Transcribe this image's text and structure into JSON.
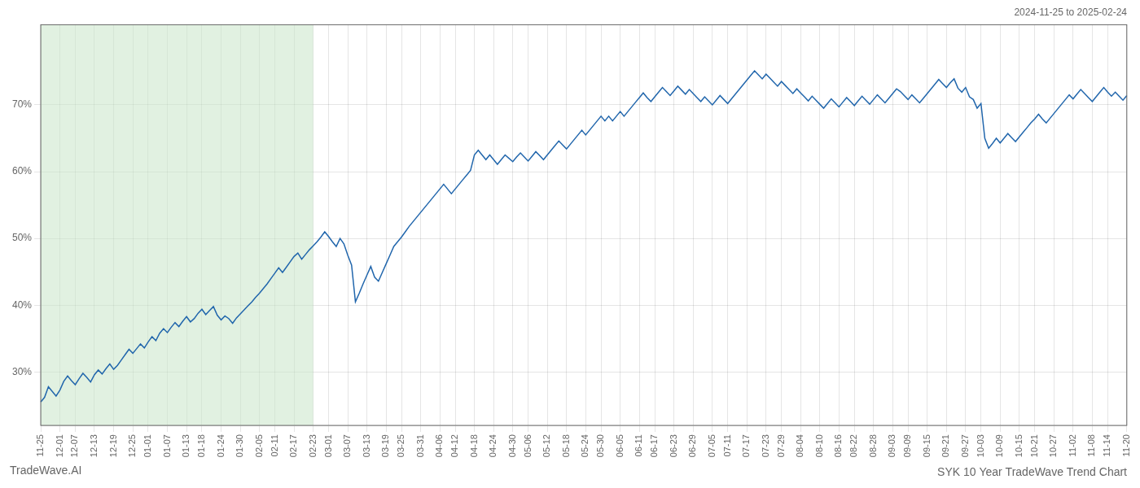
{
  "chart_data": {
    "type": "line",
    "title": "SYK 10 Year TradeWave Trend Chart",
    "subtitle": "2024-11-25 to 2025-02-24",
    "annotations": [
      "TradeWave.AI"
    ],
    "color": "#2166ac",
    "grid": true,
    "ylim": [
      22,
      82
    ],
    "yticks": [
      {
        "value": 30,
        "label": "30%"
      },
      {
        "value": 40,
        "label": "40%"
      },
      {
        "value": 50,
        "label": "50%"
      },
      {
        "value": 60,
        "label": "60%"
      },
      {
        "value": 70,
        "label": "70%"
      }
    ],
    "shaded_range": {
      "from": "11-25",
      "to": "02-23",
      "color": "#c8e6c9"
    },
    "categories": [
      "11-25",
      null,
      null,
      null,
      null,
      "12-01",
      null,
      null,
      null,
      "12-07",
      null,
      null,
      null,
      null,
      "12-13",
      null,
      null,
      null,
      null,
      "12-19",
      null,
      null,
      null,
      null,
      "12-25",
      null,
      null,
      null,
      "01-01",
      null,
      null,
      null,
      null,
      "01-07",
      null,
      null,
      null,
      null,
      "01-13",
      null,
      null,
      null,
      "01-18",
      null,
      null,
      null,
      null,
      "01-24",
      null,
      null,
      null,
      null,
      "01-30",
      null,
      null,
      null,
      null,
      "02-05",
      null,
      null,
      null,
      "02-11",
      null,
      null,
      null,
      null,
      "02-17",
      null,
      null,
      null,
      null,
      "02-23",
      null,
      null,
      null,
      "03-01",
      null,
      null,
      null,
      null,
      "03-07",
      null,
      null,
      null,
      null,
      "03-13",
      null,
      null,
      null,
      null,
      "03-19",
      null,
      null,
      null,
      "03-25",
      null,
      null,
      null,
      null,
      "03-31",
      null,
      null,
      null,
      null,
      "04-06",
      null,
      null,
      null,
      "04-12",
      null,
      null,
      null,
      null,
      "04-18",
      null,
      null,
      null,
      null,
      "04-24",
      null,
      null,
      null,
      null,
      "04-30",
      null,
      null,
      null,
      "05-06",
      null,
      null,
      null,
      null,
      "05-12",
      null,
      null,
      null,
      null,
      "05-18",
      null,
      null,
      null,
      null,
      "05-24",
      null,
      null,
      null,
      "05-30",
      null,
      null,
      null,
      null,
      "06-05",
      null,
      null,
      null,
      null,
      "06-11",
      null,
      null,
      null,
      "06-17",
      null,
      null,
      null,
      null,
      "06-23",
      null,
      null,
      null,
      null,
      "06-29",
      null,
      null,
      null,
      null,
      "07-05",
      null,
      null,
      null,
      "07-11",
      null,
      null,
      null,
      null,
      "07-17",
      null,
      null,
      null,
      null,
      "07-23",
      null,
      null,
      null,
      "07-29",
      null,
      null,
      null,
      null,
      "08-04",
      null,
      null,
      null,
      null,
      "08-10",
      null,
      null,
      null,
      null,
      "08-16",
      null,
      null,
      null,
      "08-22",
      null,
      null,
      null,
      null,
      "08-28",
      null,
      null,
      null,
      null,
      "09-03",
      null,
      null,
      null,
      "09-09",
      null,
      null,
      null,
      null,
      "09-15",
      null,
      null,
      null,
      null,
      "09-21",
      null,
      null,
      null,
      null,
      "09-27",
      null,
      null,
      null,
      "10-03",
      null,
      null,
      null,
      null,
      "10-09",
      null,
      null,
      null,
      null,
      "10-15",
      null,
      null,
      null,
      "10-21",
      null,
      null,
      null,
      null,
      "10-27",
      null,
      null,
      null,
      null,
      "11-02",
      null,
      null,
      null,
      null,
      "11-08",
      null,
      null,
      null,
      "11-14",
      null,
      null,
      null,
      null,
      "11-20"
    ],
    "values": [
      25.5,
      26.2,
      27.8,
      27.1,
      26.4,
      27.3,
      28.6,
      29.4,
      28.7,
      28.1,
      29.0,
      29.8,
      29.2,
      28.5,
      29.6,
      30.3,
      29.7,
      30.5,
      31.2,
      30.4,
      31.0,
      31.8,
      32.6,
      33.4,
      32.8,
      33.5,
      34.2,
      33.6,
      34.5,
      35.3,
      34.7,
      35.8,
      36.5,
      35.9,
      36.7,
      37.4,
      36.8,
      37.6,
      38.3,
      37.5,
      38.0,
      38.8,
      39.4,
      38.6,
      39.2,
      39.8,
      38.5,
      37.8,
      38.4,
      38.0,
      37.3,
      38.1,
      38.7,
      39.3,
      39.9,
      40.5,
      41.2,
      41.8,
      42.5,
      43.2,
      44.0,
      44.8,
      45.6,
      44.9,
      45.7,
      46.5,
      47.3,
      47.8,
      46.9,
      47.6,
      48.3,
      48.9,
      49.5,
      50.2,
      51.0,
      50.3,
      49.5,
      48.8,
      50.0,
      49.2,
      47.5,
      46.0,
      40.5,
      41.8,
      43.2,
      44.5,
      45.8,
      44.2,
      43.6,
      44.9,
      46.2,
      47.5,
      48.8,
      49.5,
      50.2,
      51.0,
      51.8,
      52.5,
      53.2,
      53.9,
      54.6,
      55.3,
      56.0,
      56.7,
      57.4,
      58.1,
      57.4,
      56.7,
      57.4,
      58.1,
      58.8,
      59.5,
      60.2,
      62.5,
      63.2,
      62.5,
      61.8,
      62.5,
      61.8,
      61.1,
      61.8,
      62.5,
      62.0,
      61.5,
      62.2,
      62.8,
      62.2,
      61.6,
      62.3,
      63.0,
      62.4,
      61.8,
      62.5,
      63.2,
      63.9,
      64.6,
      64.0,
      63.4,
      64.1,
      64.8,
      65.5,
      66.2,
      65.5,
      66.2,
      66.9,
      67.6,
      68.3,
      67.6,
      68.3,
      67.6,
      68.3,
      69.0,
      68.3,
      69.0,
      69.7,
      70.4,
      71.1,
      71.8,
      71.1,
      70.5,
      71.2,
      71.9,
      72.6,
      72.0,
      71.4,
      72.1,
      72.8,
      72.2,
      71.6,
      72.3,
      71.7,
      71.1,
      70.5,
      71.2,
      70.6,
      70.0,
      70.7,
      71.4,
      70.8,
      70.2,
      70.9,
      71.6,
      72.3,
      73.0,
      73.7,
      74.4,
      75.1,
      74.5,
      73.9,
      74.6,
      74.0,
      73.4,
      72.8,
      73.5,
      72.9,
      72.3,
      71.7,
      72.4,
      71.8,
      71.2,
      70.6,
      71.3,
      70.7,
      70.1,
      69.5,
      70.2,
      70.9,
      70.3,
      69.7,
      70.4,
      71.1,
      70.5,
      69.9,
      70.6,
      71.3,
      70.7,
      70.1,
      70.8,
      71.5,
      70.9,
      70.3,
      71.0,
      71.7,
      72.4,
      72.0,
      71.4,
      70.8,
      71.5,
      70.9,
      70.3,
      71.0,
      71.7,
      72.4,
      73.1,
      73.8,
      73.2,
      72.6,
      73.3,
      73.9,
      72.5,
      71.9,
      72.6,
      71.2,
      70.8,
      69.5,
      70.2,
      65.0,
      63.5,
      64.2,
      65.0,
      64.3,
      65.0,
      65.7,
      65.1,
      64.5,
      65.2,
      65.9,
      66.6,
      67.3,
      67.9,
      68.6,
      67.9,
      67.3,
      68.0,
      68.7,
      69.4,
      70.1,
      70.8,
      71.5,
      70.9,
      71.6,
      72.3,
      71.7,
      71.1,
      70.5,
      71.2,
      71.9,
      72.6,
      71.9,
      71.3,
      71.9,
      71.3,
      70.7,
      71.4
    ]
  }
}
